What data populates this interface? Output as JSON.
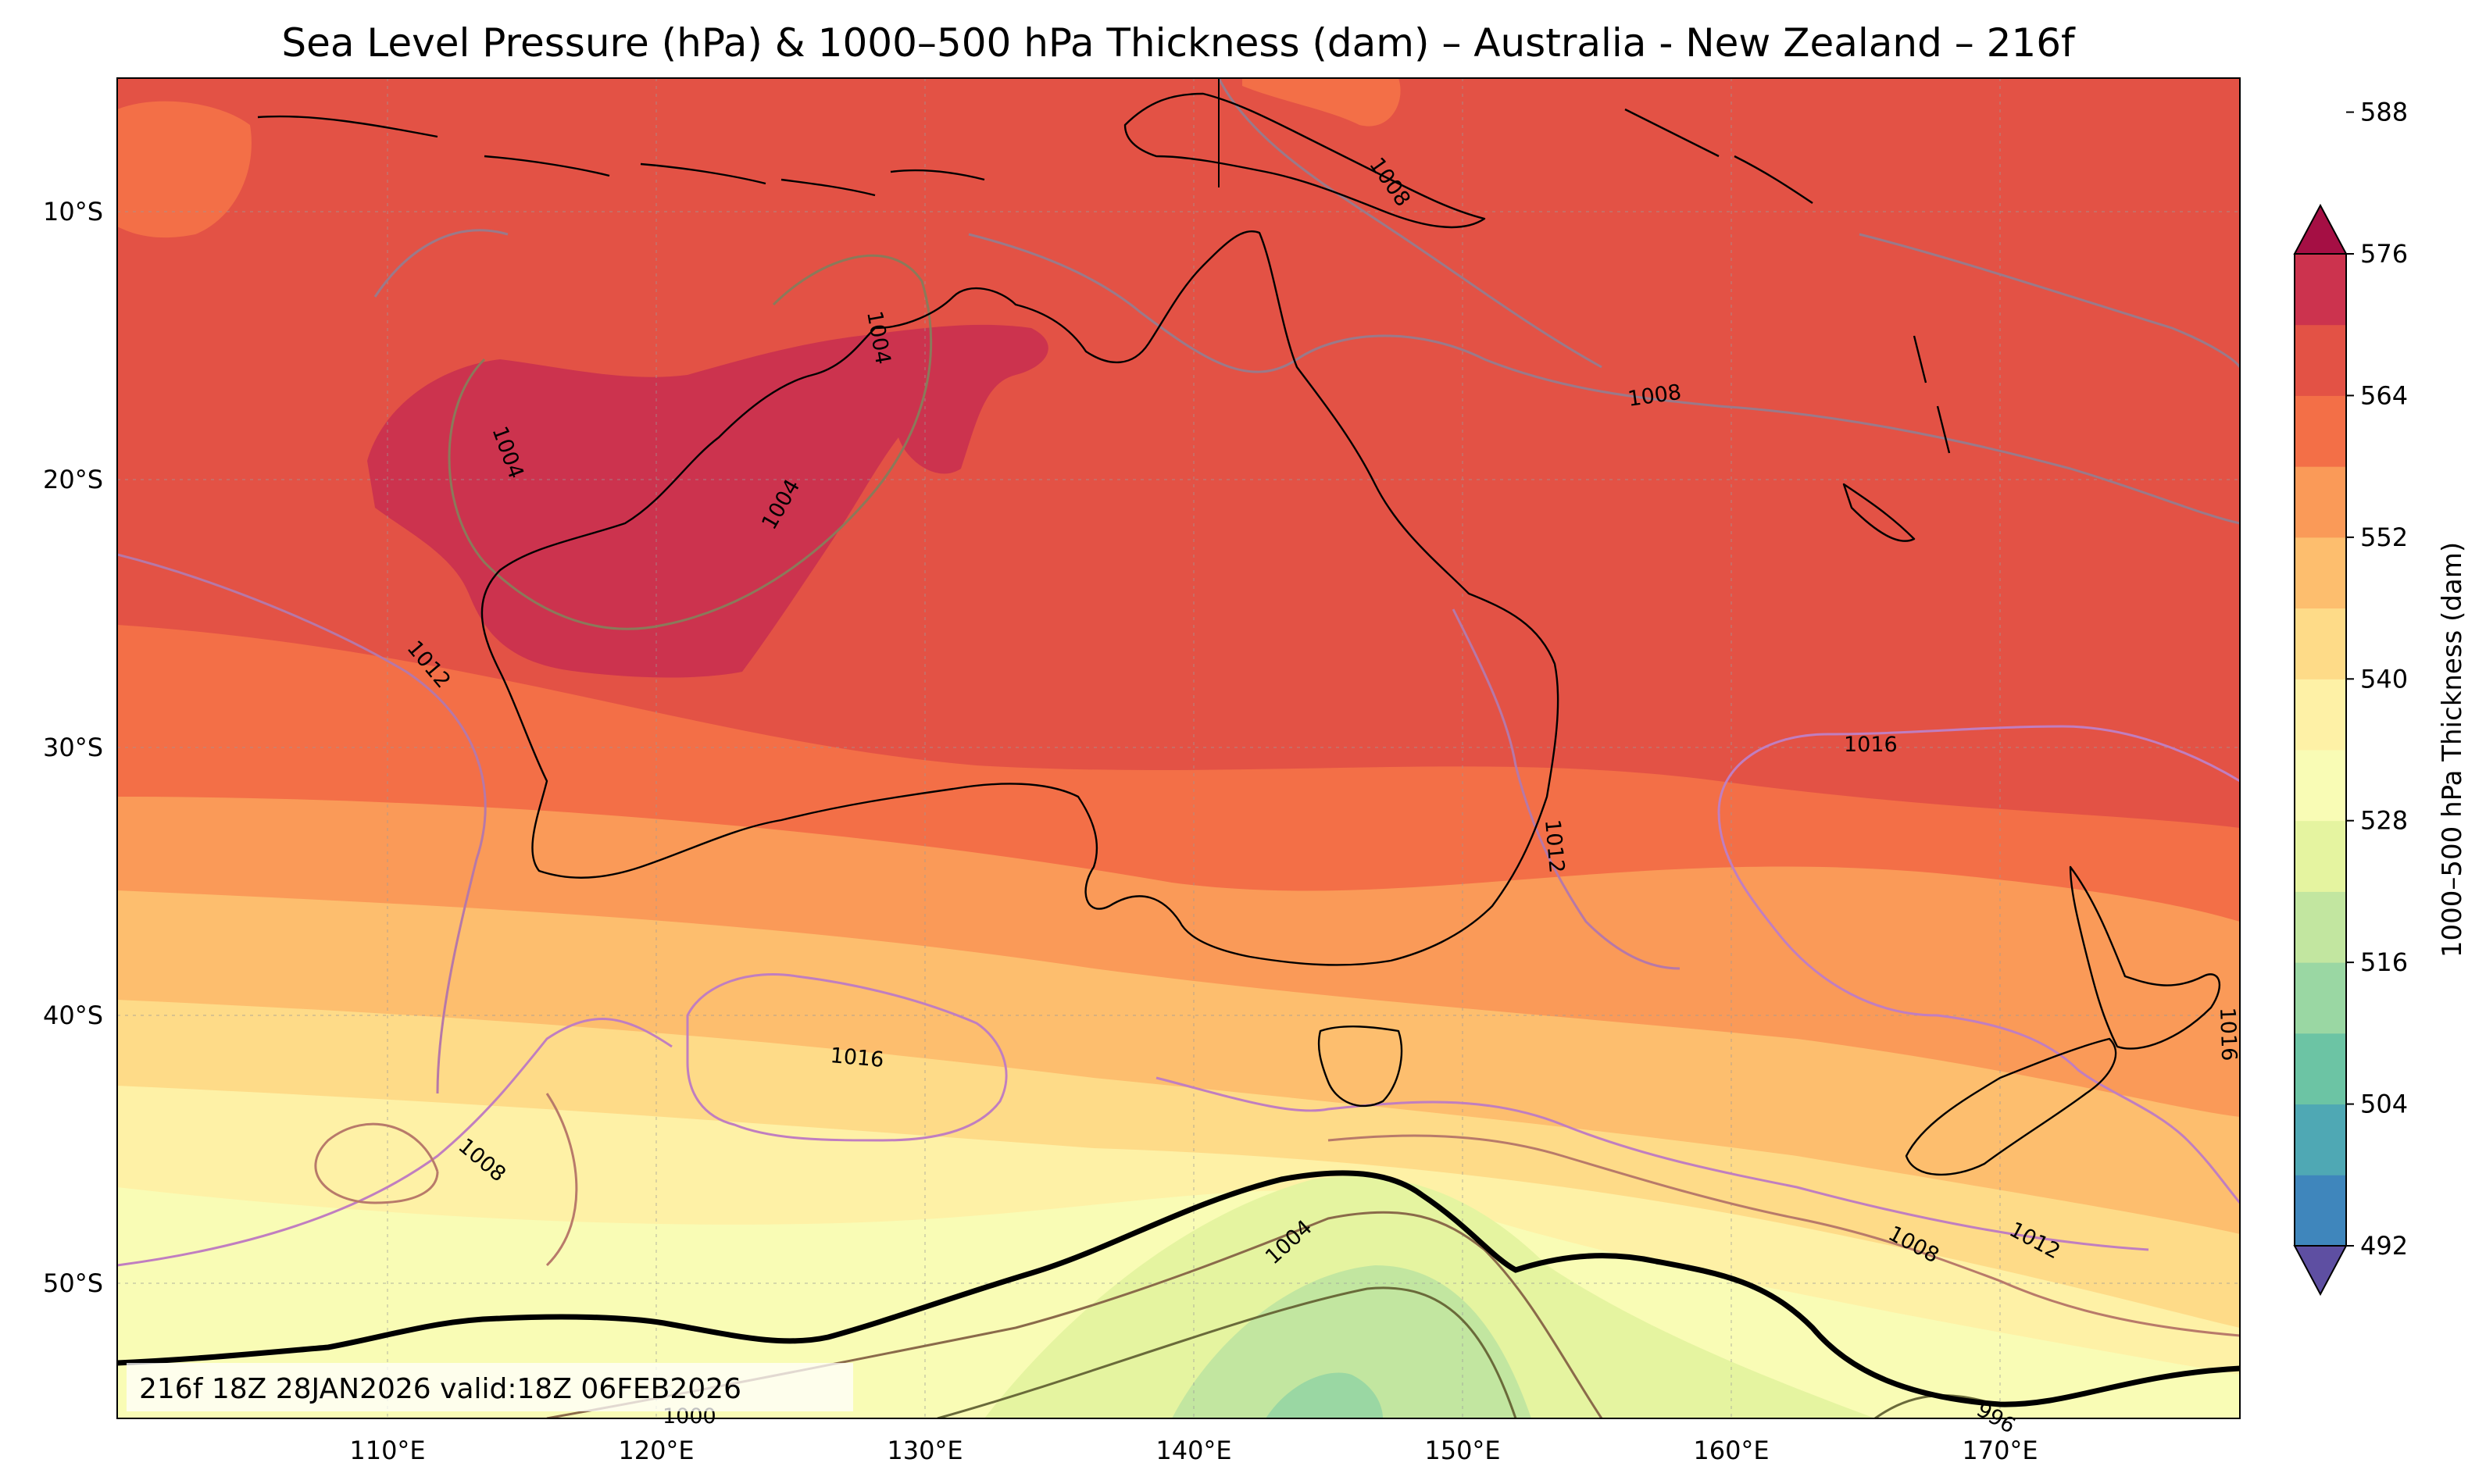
{
  "title": "Sea Level Pressure (hPa) & 1000–500 hPa Thickness (dam) – Australia - New Zealand – 216f",
  "valid_text": "216f 18Z 28JAN2026 valid:18Z 06FEB2026",
  "colorbar": {
    "label": "1000–500 hPa Thickness (dam)",
    "ticks": [
      "492",
      "504",
      "516",
      "528",
      "540",
      "552",
      "564",
      "576",
      "588"
    ],
    "colors": [
      "#5e4fa2",
      "#3f86bc",
      "#4fa8b4",
      "#6cc4a4",
      "#9ad7a3",
      "#c2e6a0",
      "#e5f4a0",
      "#f9fcb5",
      "#fef1a6",
      "#fedb88",
      "#fdbe6e",
      "#fa9a58",
      "#f36f47",
      "#e35245",
      "#cc334e",
      "#a50f44"
    ]
  },
  "axes": {
    "lon_labels": [
      "110°E",
      "120°E",
      "130°E",
      "140°E",
      "150°E",
      "160°E",
      "170°E"
    ],
    "lat_labels": [
      "10°S",
      "20°S",
      "30°S",
      "40°S",
      "50°S"
    ],
    "extent": {
      "lon": [
        100,
        179
      ],
      "lat": [
        -55,
        -5
      ]
    }
  },
  "isobar_labels": [
    "1008",
    "1004",
    "1004",
    "1004",
    "1008",
    "1012",
    "1016",
    "1012",
    "1016",
    "1016",
    "1008",
    "1004",
    "1008",
    "1012",
    "1000",
    "996"
  ],
  "chart_data": {
    "type": "map-contour",
    "fields": [
      "Sea Level Pressure (hPa)",
      "1000–500 hPa Thickness (dam)"
    ],
    "thickness_contour_interval_dam": 6,
    "pressure_contour_interval_hPa": 4,
    "highlight_line_dam": 546,
    "forecast_hour": "216f",
    "init": "18Z 28JAN2026",
    "valid": "18Z 06FEB2026"
  }
}
